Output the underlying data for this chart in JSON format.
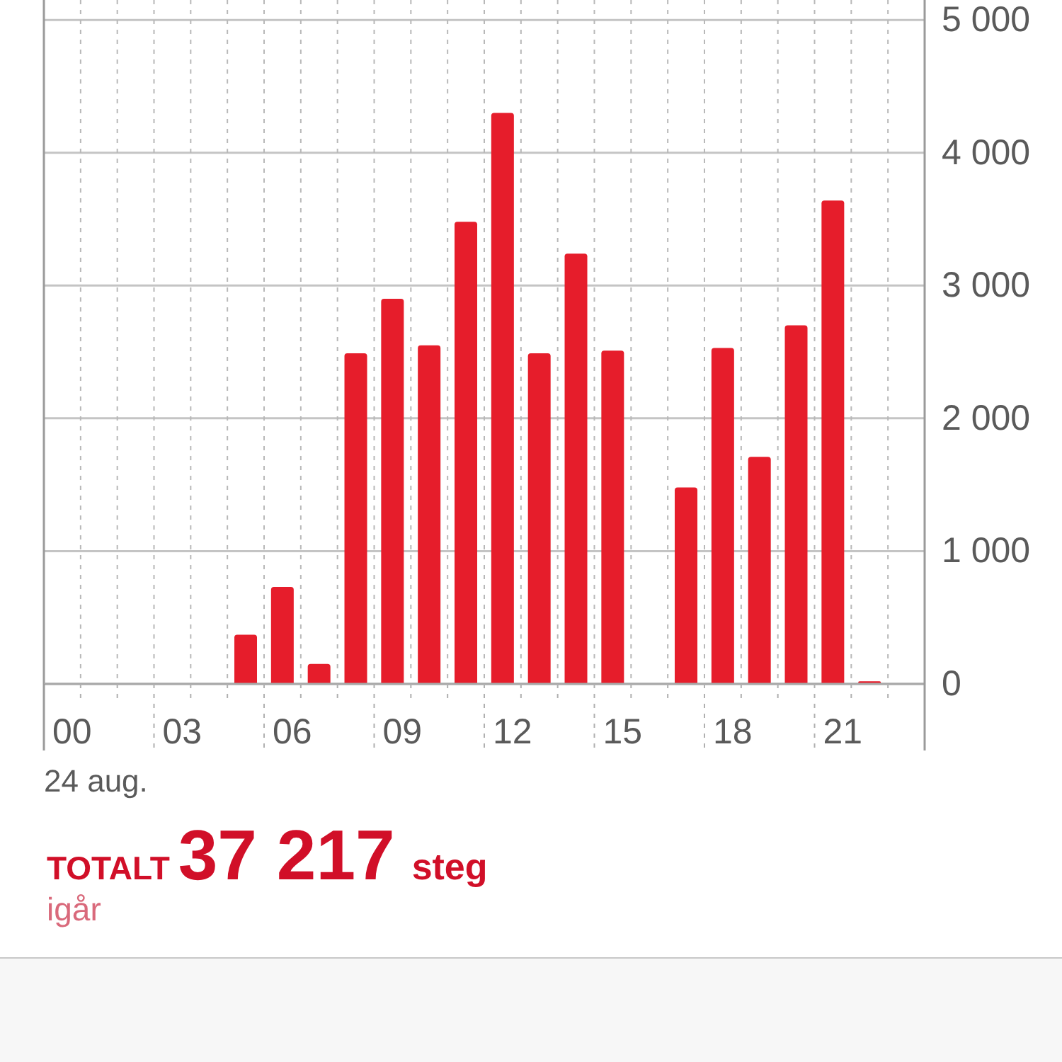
{
  "chart_data": {
    "type": "bar",
    "categories": [
      "00",
      null,
      null,
      "03",
      null,
      null,
      "06",
      null,
      null,
      "09",
      null,
      null,
      "12",
      null,
      null,
      "15",
      null,
      null,
      "18",
      null,
      null,
      "21",
      null,
      null
    ],
    "values": [
      null,
      null,
      null,
      null,
      null,
      370,
      730,
      150,
      2490,
      2900,
      2550,
      3480,
      4300,
      2490,
      3240,
      2510,
      null,
      1480,
      2530,
      1710,
      2700,
      3640,
      20,
      null
    ],
    "color": "#e61d2b",
    "ylim": [
      0,
      5150
    ],
    "yticks": [
      0,
      {
        "value": 1000,
        "label": "1 000"
      },
      {
        "value": 2000,
        "label": "2 000"
      },
      {
        "value": 3000,
        "label": "3 000"
      },
      {
        "value": 4000,
        "label": "4 000"
      },
      {
        "value": 5000,
        "label": "5 000"
      }
    ],
    "grid": true,
    "xlabel": "24 aug.",
    "annotations": [
      "TOTALT",
      "37 217",
      "steg",
      "igår"
    ]
  }
}
